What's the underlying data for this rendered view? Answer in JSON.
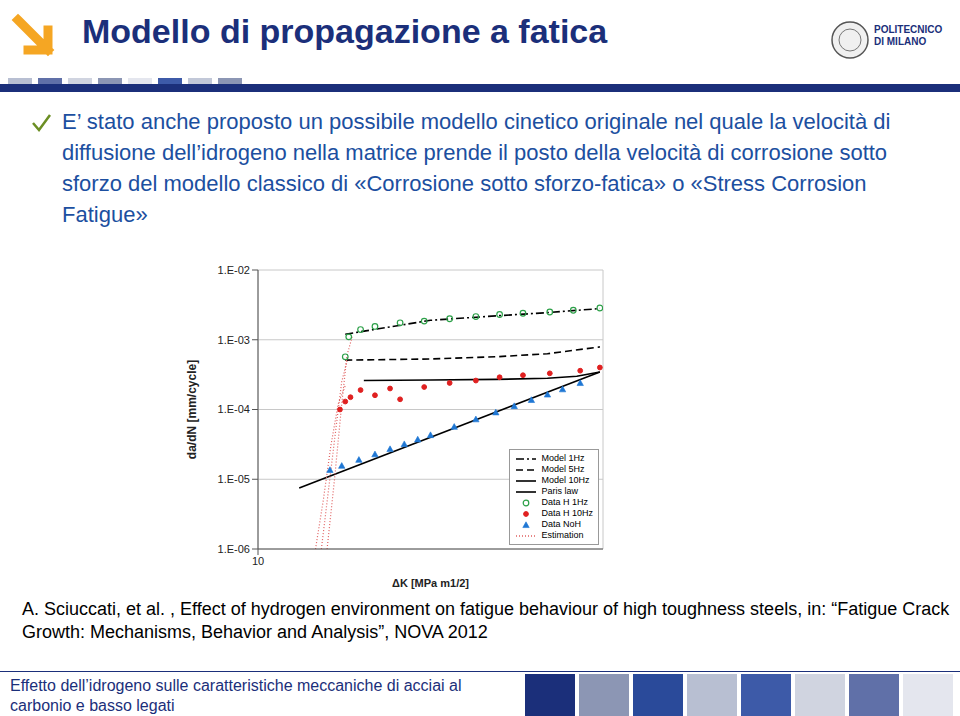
{
  "header": {
    "title": "Modello di propagazione a fatica",
    "logo": [
      "POLITECNICO",
      "DI MILANO"
    ]
  },
  "bullet": "E’ stato anche proposto un possibile modello cinetico originale nel quale la velocità di diffusione dell’idrogeno nella matrice prende il posto della velocità di corrosione sotto sforzo del modello classico di «Corrosione sotto sforzo-fatica» o «Stress Corrosion Fatigue»",
  "chart_data": {
    "type": "line",
    "xlabel": "ΔK [MPa m1/2]",
    "ylabel": "da/dN [mm/cycle]",
    "log": true,
    "grid": true,
    "legend": "bottom right",
    "xlim": [
      10,
      40
    ],
    "xticks": [
      10
    ],
    "ylim": [
      1e-06,
      0.01
    ],
    "yticks": [
      {
        "value": 1e-06,
        "label": "1.E-06"
      },
      {
        "value": 1e-05,
        "label": "1.E-05"
      },
      {
        "value": 0.0001,
        "label": "1.E-04"
      },
      {
        "value": 0.001,
        "label": "1.E-03"
      },
      {
        "value": 0.01,
        "label": "1.E-02"
      }
    ],
    "series": [
      {
        "name": "Model 1Hz",
        "type": "line",
        "color": "#000000",
        "line_style": "dashdot",
        "x": [
          14.2,
          20,
          26,
          32,
          39.5
        ],
        "values": [
          0.0012,
          0.0019,
          0.0022,
          0.00245,
          0.0028
        ]
      },
      {
        "name": "Model 5Hz",
        "type": "line",
        "color": "#000000",
        "line_style": "dashed",
        "x": [
          14.2,
          20,
          26,
          32,
          39.5
        ],
        "values": [
          0.00051,
          0.00053,
          0.00057,
          0.00063,
          0.00079
        ]
      },
      {
        "name": "Model 10Hz",
        "type": "line",
        "color": "#000000",
        "line_style": "solid",
        "x": [
          15.3,
          20,
          26,
          32,
          36,
          39.5
        ],
        "values": [
          0.00026,
          0.000265,
          0.00027,
          0.00028,
          0.0003,
          0.000345
        ]
      },
      {
        "name": "Paris law",
        "type": "line",
        "color": "#000000",
        "line_style": "solid",
        "x": [
          11.8,
          39.5
        ],
        "values": [
          7.5e-06,
          0.000345
        ]
      },
      {
        "name": "Data H 1Hz",
        "type": "scatter",
        "color": "#2ca048",
        "marker": "circle_open",
        "x": [
          14.2,
          14.4,
          15.1,
          16,
          17.7,
          19.5,
          21.6,
          24,
          26.4,
          29,
          32.3,
          35.5,
          39.5
        ],
        "values": [
          0.00057,
          0.0011,
          0.0014,
          0.00155,
          0.00175,
          0.00185,
          0.002,
          0.00215,
          0.0023,
          0.0024,
          0.0025,
          0.00265,
          0.00285
        ]
      },
      {
        "name": "Data H 10Hz",
        "type": "scatter",
        "color": "#e02020",
        "marker": "circle",
        "x": [
          13.9,
          14.2,
          14.5,
          15.1,
          16,
          17,
          17.7,
          19.5,
          21.6,
          24,
          26.4,
          29,
          32.3,
          36.5,
          39.5
        ],
        "values": [
          0.0001,
          0.00013,
          0.00015,
          0.00019,
          0.00016,
          0.0002,
          0.00014,
          0.00021,
          0.00024,
          0.00026,
          0.00029,
          0.00031,
          0.00033,
          0.00036,
          0.0004
        ]
      },
      {
        "name": "Data NoH",
        "type": "scatter",
        "color": "#1f77d4",
        "marker": "triangle",
        "x": [
          13.35,
          14,
          15,
          16,
          17,
          18,
          19,
          20,
          22,
          24,
          26,
          28,
          30,
          32,
          34,
          36.5
        ],
        "values": [
          1.36e-05,
          1.56e-05,
          1.9e-05,
          2.28e-05,
          2.71e-05,
          3.19e-05,
          3.72e-05,
          4.3e-05,
          5.65e-05,
          7.24e-05,
          9.1e-05,
          0.000112,
          0.000137,
          0.000164,
          0.000195,
          0.00024
        ]
      },
      {
        "name": "Estimation",
        "type": "line",
        "color": "#e06060",
        "line_style": "dotted",
        "segments": [
          {
            "x": [
              12.6,
              13.0,
              13.4,
              13.8,
              14.2
            ],
            "values": [
              1e-06,
              5e-06,
              3e-05,
              0.00012,
              0.00022
            ]
          },
          {
            "x": [
              12.9,
              13.3,
              13.7,
              14.0,
              14.3
            ],
            "values": [
              1e-06,
              8e-06,
              6e-05,
              0.00025,
              0.0005
            ]
          },
          {
            "x": [
              13.2,
              13.6,
              14.0,
              14.3,
              14.6
            ],
            "values": [
              1e-06,
              1e-05,
              0.00012,
              0.0006,
              0.0011
            ]
          }
        ]
      }
    ]
  },
  "reference": "A. Sciuccati, et al. , Effect of hydrogen environment on fatigue behaviour of high toughness steels, in: “Fatigue Crack Growth: Mechanisms, Behavior and Analysis”, NOVA 2012",
  "footer": "Effetto dell’idrogeno sulle caratteristiche meccaniche di acciai al carbonio e basso legati"
}
